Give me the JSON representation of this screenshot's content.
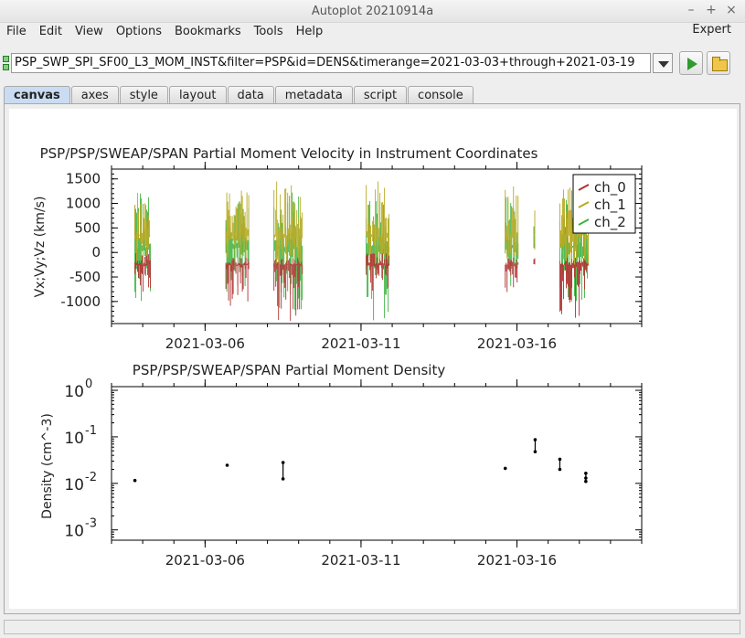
{
  "window": {
    "title": "Autoplot 20210914a"
  },
  "menu": {
    "items": [
      "File",
      "Edit",
      "View",
      "Options",
      "Bookmarks",
      "Tools",
      "Help"
    ],
    "expert": "Expert"
  },
  "uri": {
    "value": "PSP_SWP_SPI_SF00_L3_MOM_INST&filter=PSP&id=DENS&timerange=2021-03-03+through+2021-03-19"
  },
  "tabs": [
    "canvas",
    "axes",
    "style",
    "layout",
    "data",
    "metadata",
    "script",
    "console"
  ],
  "active_tab": "canvas",
  "chart_data": [
    {
      "type": "line",
      "title": "PSP/PSP/SWEAP/SPAN  Partial Moment Velocity in Instrument Coordinates",
      "ylabel": "Vx;Vy;Vz (km/s)",
      "xlabel": "",
      "xlim": [
        "2021-03-03",
        "2021-03-20"
      ],
      "ylim": [
        -1450,
        1700
      ],
      "yticks": [
        1500,
        1000,
        500,
        0,
        -500,
        -1000
      ],
      "xticks": [
        "2021-03-06",
        "2021-03-11",
        "2021-03-16"
      ],
      "legend_position": "top-right",
      "series_colors": {
        "ch_0": "#b03030",
        "ch_1": "#b8a820",
        "ch_2": "#3fb33f"
      },
      "series": [
        {
          "name": "ch_0",
          "color": "#b03030"
        },
        {
          "name": "ch_1",
          "color": "#b8a820"
        },
        {
          "name": "ch_2",
          "color": "#3fb33f"
        }
      ],
      "segments": [
        {
          "start": "2021-03-03 18:00",
          "end": "2021-03-04 06:00",
          "ranges": {
            "ch_0": [
              -900,
              0
            ],
            "ch_1": [
              -200,
              1300
            ],
            "ch_2": [
              -1000,
              1300
            ]
          }
        },
        {
          "start": "2021-03-06 16:00",
          "end": "2021-03-07 10:00",
          "ranges": {
            "ch_0": [
              -1100,
              -100
            ],
            "ch_1": [
              -300,
              1300
            ],
            "ch_2": [
              -900,
              1200
            ]
          }
        },
        {
          "start": "2021-03-08 05:00",
          "end": "2021-03-09 03:00",
          "ranges": {
            "ch_0": [
              -1400,
              -100
            ],
            "ch_1": [
              -300,
              1450
            ],
            "ch_2": [
              -1200,
              1300
            ]
          }
        },
        {
          "start": "2021-03-11 04:00",
          "end": "2021-03-11 22:00",
          "ranges": {
            "ch_0": [
              -800,
              0
            ],
            "ch_1": [
              -300,
              1600
            ],
            "ch_2": [
              -1400,
              1100
            ]
          }
        },
        {
          "start": "2021-03-15 15:00",
          "end": "2021-03-16 01:00",
          "ranges": {
            "ch_0": [
              -850,
              -100
            ],
            "ch_1": [
              -200,
              1400
            ],
            "ch_2": [
              -800,
              1400
            ]
          }
        },
        {
          "start": "2021-03-16 13:00",
          "end": "2021-03-16 14:00",
          "ranges": {
            "ch_0": [
              -100,
              0
            ],
            "ch_1": [
              -100,
              1100
            ],
            "ch_2": [
              -100,
              1000
            ]
          }
        },
        {
          "start": "2021-03-17 09:00",
          "end": "2021-03-18 07:00",
          "ranges": {
            "ch_0": [
              -1350,
              -100
            ],
            "ch_1": [
              -300,
              1400
            ],
            "ch_2": [
              -1000,
              1300
            ]
          }
        }
      ]
    },
    {
      "type": "scatter",
      "title": "PSP/PSP/SWEAP/SPAN  Partial Moment Density",
      "ylabel": "Density (cm^-3)",
      "xlabel": "",
      "yscale": "log",
      "xlim": [
        "2021-03-03",
        "2021-03-20"
      ],
      "ylim": [
        0.0006,
        1.2
      ],
      "yticks": [
        {
          "value": 1,
          "base": "10",
          "exp": "0"
        },
        {
          "value": 0.1,
          "base": "10",
          "exp": "-1"
        },
        {
          "value": 0.01,
          "base": "10",
          "exp": "-2"
        },
        {
          "value": 0.001,
          "base": "10",
          "exp": "-3"
        }
      ],
      "xticks": [
        "2021-03-06",
        "2021-03-11",
        "2021-03-16"
      ],
      "points": [
        {
          "x": "2021-03-03 18:00",
          "y": 0.0115
        },
        {
          "x": "2021-03-06 17:00",
          "y": 0.0245
        },
        {
          "x": "2021-03-08 12:00",
          "y": 0.0125
        },
        {
          "x": "2021-03-08 12:00",
          "y": 0.028
        },
        {
          "x": "2021-03-15 15:00",
          "y": 0.021
        },
        {
          "x": "2021-03-16 14:00",
          "y": 0.087
        },
        {
          "x": "2021-03-16 14:00",
          "y": 0.048
        },
        {
          "x": "2021-03-17 09:00",
          "y": 0.02
        },
        {
          "x": "2021-03-17 09:00",
          "y": 0.033
        },
        {
          "x": "2021-03-18 05:00",
          "y": 0.011
        },
        {
          "x": "2021-03-18 05:00",
          "y": 0.0165
        },
        {
          "x": "2021-03-18 05:00",
          "y": 0.013
        }
      ]
    }
  ]
}
